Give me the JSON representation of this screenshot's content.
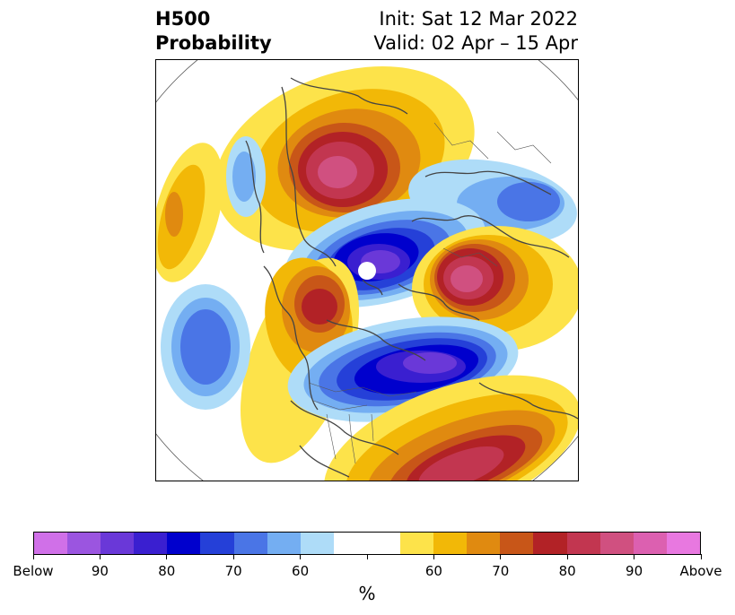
{
  "title": {
    "left_line1": "H500",
    "left_line2": "Probability",
    "right_line1": "Init: Sat 12 Mar 2022",
    "right_line2": "Valid: 02 Apr – 15 Apr"
  },
  "colorbar": {
    "colors": [
      "#d070e8",
      "#9b55e0",
      "#6a38d8",
      "#3a1fd0",
      "#0000cd",
      "#2540d8",
      "#4a75e6",
      "#74aef2",
      "#aedcf8",
      "#ffffff",
      "#ffffff",
      "#fde34a",
      "#f2b807",
      "#e08a10",
      "#c85618",
      "#b22226",
      "#c23650",
      "#d05080",
      "#dc60b0",
      "#e878e0"
    ],
    "tick_labels": [
      "Below",
      "90",
      "80",
      "70",
      "60",
      "",
      "60",
      "70",
      "80",
      "90",
      "Above"
    ],
    "unit_label": "%"
  },
  "map": {
    "projection": "polar-stereographic",
    "features": [
      "coastlines",
      "country-borders",
      "state-borders"
    ],
    "anomaly_centers": [
      {
        "region": "Greenland / Eastern Arctic",
        "sign": "above",
        "max_category": "90"
      },
      {
        "region": "Arctic Ocean / Canadian Archipelago",
        "sign": "below",
        "max_category": "90"
      },
      {
        "region": "Siberia / Northeast Asia",
        "sign": "above",
        "max_category": "90"
      },
      {
        "region": "North Pacific",
        "sign": "below",
        "max_category": "70"
      },
      {
        "region": "Alaska",
        "sign": "above",
        "max_category": "80"
      },
      {
        "region": "Northern Europe / Scandinavia",
        "sign": "below",
        "max_category": "90"
      },
      {
        "region": "Central Asia",
        "sign": "below",
        "max_category": "60"
      },
      {
        "region": "North Africa / Mediterranean",
        "sign": "above",
        "max_category": "90"
      },
      {
        "region": "Mid Atlantic",
        "sign": "above",
        "max_category": "60"
      }
    ]
  }
}
